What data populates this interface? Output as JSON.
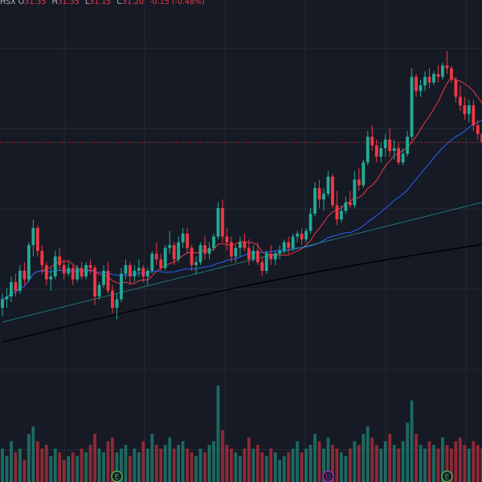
{
  "header": {
    "exchange": "HSX",
    "open_label": "O",
    "open": "31.35",
    "high_label": "H",
    "high": "31.35",
    "low_label": "L",
    "low": "31.15",
    "close_label": "C",
    "close": "31.20",
    "change": "-0.15 (-0.48%)"
  },
  "colors": {
    "background": "#161a25",
    "grid": "#262a35",
    "up": "#22ab94",
    "down": "#f23645",
    "ma_fast": "#f23645",
    "ma_mid": "#2962ff",
    "ma_slow": "#22ab94",
    "ma_long": "#000000",
    "price_line": "#f23645"
  },
  "events": [
    {
      "label": "E",
      "color": "#4caf50",
      "index": 26
    },
    {
      "label": "D",
      "color": "#9c27b0",
      "index": 74
    },
    {
      "label": "E",
      "color": "#4caf50",
      "index": 101
    }
  ],
  "chart_data": {
    "type": "candlestick",
    "title": "",
    "xlabel": "",
    "ylabel": "",
    "ylim": [
      27.5,
      33.5
    ],
    "current_price": 31.2,
    "series": [
      {
        "name": "",
        "values": []
      }
    ],
    "candles": [
      [
        28.3,
        28.55,
        28.15,
        28.45,
        900
      ],
      [
        28.45,
        28.65,
        28.3,
        28.5,
        700
      ],
      [
        28.5,
        28.85,
        28.4,
        28.75,
        1100
      ],
      [
        28.75,
        28.9,
        28.5,
        28.6,
        800
      ],
      [
        28.6,
        29.05,
        28.55,
        28.95,
        900
      ],
      [
        28.95,
        29.1,
        28.7,
        28.8,
        600
      ],
      [
        28.8,
        29.45,
        28.75,
        29.4,
        1300
      ],
      [
        29.4,
        29.85,
        29.2,
        29.7,
        1500
      ],
      [
        29.7,
        29.75,
        29.2,
        29.3,
        1100
      ],
      [
        29.3,
        29.4,
        28.9,
        29.05,
        900
      ],
      [
        29.05,
        29.1,
        28.7,
        28.8,
        1000
      ],
      [
        28.8,
        29.0,
        28.6,
        28.85,
        700
      ],
      [
        28.85,
        29.3,
        28.8,
        29.2,
        900
      ],
      [
        29.2,
        29.35,
        28.95,
        29.05,
        800
      ],
      [
        29.05,
        29.15,
        28.8,
        28.9,
        600
      ],
      [
        28.9,
        29.1,
        28.85,
        29.0,
        700
      ],
      [
        29.0,
        29.05,
        28.7,
        28.8,
        800
      ],
      [
        28.8,
        29.05,
        28.75,
        29.0,
        700
      ],
      [
        29.0,
        29.1,
        28.8,
        28.85,
        900
      ],
      [
        28.85,
        29.1,
        28.8,
        29.05,
        800
      ],
      [
        29.05,
        29.15,
        28.9,
        29.0,
        1000
      ],
      [
        29.0,
        29.05,
        28.35,
        28.5,
        1300
      ],
      [
        28.5,
        28.75,
        28.45,
        28.7,
        900
      ],
      [
        28.7,
        29.05,
        28.65,
        28.95,
        800
      ],
      [
        28.95,
        29.1,
        28.55,
        28.6,
        1100
      ],
      [
        28.6,
        28.7,
        28.2,
        28.3,
        1200
      ],
      [
        28.3,
        28.55,
        28.1,
        28.45,
        800
      ],
      [
        28.45,
        29.0,
        28.4,
        28.9,
        900
      ],
      [
        28.9,
        29.15,
        28.8,
        29.05,
        1000
      ],
      [
        29.05,
        29.1,
        28.7,
        28.85,
        700
      ],
      [
        28.85,
        29.05,
        28.75,
        28.95,
        900
      ],
      [
        28.95,
        29.15,
        28.85,
        29.0,
        800
      ],
      [
        29.0,
        29.05,
        28.75,
        28.85,
        1100
      ],
      [
        28.85,
        29.0,
        28.7,
        28.95,
        900
      ],
      [
        28.95,
        29.3,
        28.9,
        29.25,
        1300
      ],
      [
        29.25,
        29.45,
        29.05,
        29.15,
        1000
      ],
      [
        29.15,
        29.25,
        28.95,
        29.0,
        900
      ],
      [
        29.0,
        29.4,
        28.95,
        29.35,
        1000
      ],
      [
        29.35,
        29.65,
        29.25,
        29.4,
        1200
      ],
      [
        29.4,
        29.45,
        29.05,
        29.15,
        900
      ],
      [
        29.15,
        29.55,
        29.1,
        29.45,
        1000
      ],
      [
        29.45,
        29.7,
        29.35,
        29.6,
        1100
      ],
      [
        29.6,
        29.7,
        29.25,
        29.35,
        900
      ],
      [
        29.35,
        29.4,
        28.95,
        29.05,
        800
      ],
      [
        29.05,
        29.2,
        28.9,
        29.1,
        700
      ],
      [
        29.1,
        29.45,
        29.05,
        29.4,
        900
      ],
      [
        29.4,
        29.55,
        29.15,
        29.25,
        800
      ],
      [
        29.25,
        29.45,
        29.15,
        29.35,
        1000
      ],
      [
        29.35,
        29.6,
        29.3,
        29.55,
        1100
      ],
      [
        29.55,
        30.15,
        29.5,
        30.05,
        2600
      ],
      [
        30.05,
        30.2,
        29.45,
        29.55,
        1400
      ],
      [
        29.55,
        29.7,
        29.3,
        29.45,
        1000
      ],
      [
        29.45,
        29.55,
        29.1,
        29.2,
        900
      ],
      [
        29.2,
        29.4,
        29.1,
        29.35,
        800
      ],
      [
        29.35,
        29.55,
        29.2,
        29.45,
        700
      ],
      [
        29.45,
        29.6,
        29.3,
        29.35,
        900
      ],
      [
        29.35,
        29.5,
        29.05,
        29.15,
        1200
      ],
      [
        29.15,
        29.4,
        29.1,
        29.3,
        900
      ],
      [
        29.3,
        29.45,
        29.05,
        29.1,
        1000
      ],
      [
        29.1,
        29.2,
        28.85,
        28.95,
        800
      ],
      [
        28.95,
        29.3,
        28.9,
        29.25,
        700
      ],
      [
        29.25,
        29.4,
        29.05,
        29.15,
        900
      ],
      [
        29.15,
        29.3,
        29.05,
        29.25,
        800
      ],
      [
        29.25,
        29.4,
        29.15,
        29.3,
        600
      ],
      [
        29.3,
        29.5,
        29.25,
        29.45,
        700
      ],
      [
        29.45,
        29.55,
        29.25,
        29.35,
        800
      ],
      [
        29.35,
        29.6,
        29.3,
        29.55,
        900
      ],
      [
        29.55,
        29.65,
        29.45,
        29.6,
        1100
      ],
      [
        29.6,
        29.7,
        29.4,
        29.5,
        800
      ],
      [
        29.5,
        29.7,
        29.45,
        29.65,
        900
      ],
      [
        29.65,
        30.05,
        29.6,
        29.95,
        1000
      ],
      [
        29.95,
        30.5,
        29.9,
        30.4,
        1300
      ],
      [
        30.4,
        30.55,
        30.05,
        30.2,
        1100
      ],
      [
        30.2,
        30.4,
        30.0,
        30.3,
        900
      ],
      [
        30.3,
        30.7,
        30.25,
        30.6,
        1200
      ],
      [
        30.6,
        30.65,
        30.05,
        30.1,
        1000
      ],
      [
        30.1,
        30.35,
        29.75,
        29.85,
        900
      ],
      [
        29.85,
        30.1,
        29.8,
        30.0,
        800
      ],
      [
        30.0,
        30.25,
        29.95,
        30.15,
        700
      ],
      [
        30.15,
        30.35,
        30.05,
        30.1,
        900
      ],
      [
        30.1,
        30.7,
        30.05,
        30.55,
        1100
      ],
      [
        30.55,
        30.75,
        30.35,
        30.45,
        1000
      ],
      [
        30.45,
        30.9,
        30.4,
        30.85,
        1300
      ],
      [
        30.85,
        31.4,
        30.8,
        31.3,
        1500
      ],
      [
        31.3,
        31.5,
        31.05,
        31.15,
        1200
      ],
      [
        31.15,
        31.25,
        30.85,
        30.95,
        1000
      ],
      [
        30.95,
        31.2,
        30.85,
        31.1,
        900
      ],
      [
        31.1,
        31.35,
        30.95,
        31.25,
        1100
      ],
      [
        31.25,
        31.45,
        30.95,
        31.05,
        1300
      ],
      [
        31.05,
        31.25,
        30.9,
        31.1,
        1000
      ],
      [
        31.1,
        31.2,
        30.8,
        30.85,
        900
      ],
      [
        30.85,
        31.1,
        30.8,
        31.0,
        1100
      ],
      [
        31.0,
        31.4,
        30.95,
        31.3,
        1600
      ],
      [
        31.3,
        32.5,
        31.25,
        32.35,
        2200
      ],
      [
        32.35,
        32.4,
        32.0,
        32.1,
        1300
      ],
      [
        32.1,
        32.3,
        32.0,
        32.2,
        1000
      ],
      [
        32.2,
        32.45,
        32.1,
        32.35,
        900
      ],
      [
        32.35,
        32.5,
        32.15,
        32.25,
        1100
      ],
      [
        32.25,
        32.45,
        32.2,
        32.4,
        1000
      ],
      [
        32.4,
        32.55,
        32.25,
        32.35,
        900
      ],
      [
        32.35,
        32.6,
        32.3,
        32.55,
        1200
      ],
      [
        32.55,
        32.8,
        32.4,
        32.5,
        1000
      ],
      [
        32.5,
        32.55,
        32.25,
        32.3,
        900
      ],
      [
        32.3,
        32.35,
        31.9,
        32.0,
        1100
      ],
      [
        32.0,
        32.2,
        31.75,
        31.85,
        1200
      ],
      [
        31.85,
        32.0,
        31.6,
        31.7,
        1000
      ],
      [
        31.7,
        31.95,
        31.55,
        31.85,
        900
      ],
      [
        31.85,
        31.95,
        31.4,
        31.5,
        1100
      ],
      [
        31.5,
        31.6,
        31.25,
        31.35,
        1000
      ],
      [
        31.35,
        31.35,
        31.15,
        31.2,
        900
      ]
    ]
  }
}
